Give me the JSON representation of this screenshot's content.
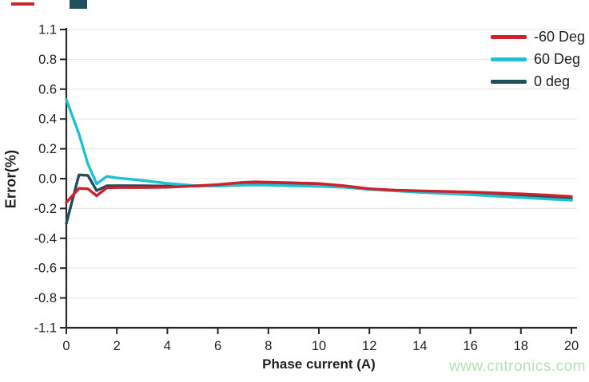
{
  "watermark": "www.cntronics.com",
  "colors": {
    "accent_red": "#d0202c",
    "accent_cyan": "#1ec0d2",
    "accent_dark_teal": "#204e5c",
    "text": "#231f20",
    "gridline": "#e9e9ec",
    "axis": "#2a2727",
    "watermark_green": "#b5e3b5"
  },
  "decor": {
    "top_left_red_dash": "#c4272e",
    "top_left_teal_square": "#20505e"
  },
  "chart_data": {
    "type": "line",
    "title": "",
    "xlabel": "Phase current (A)",
    "ylabel": "Error(%)",
    "xlim": [
      0,
      20
    ],
    "ylim": [
      -1.1,
      1.1
    ],
    "grid": "horizontal",
    "legend_position": "top-right",
    "x_ticks": [
      0,
      2,
      4,
      6,
      8,
      10,
      12,
      14,
      16,
      18,
      20
    ],
    "y_tick_labels": [
      "1.1",
      "0.8",
      "0.6",
      "0.4",
      "0.2",
      "0.0",
      "-0.2",
      "-0.4",
      "-0.6",
      "-0.8",
      "-1.1"
    ],
    "x": [
      0,
      0.5,
      0.85,
      1.2,
      1.6,
      2,
      3,
      4,
      5,
      6,
      7,
      7.5,
      8,
      9,
      10,
      11,
      12,
      13,
      14,
      15,
      16,
      17,
      18,
      19,
      20
    ],
    "series": [
      {
        "name": "-60 Deg",
        "color": "#d0202c",
        "values": [
          -0.16,
          -0.065,
          -0.068,
          -0.115,
          -0.062,
          -0.06,
          -0.06,
          -0.058,
          -0.05,
          -0.04,
          -0.025,
          -0.022,
          -0.024,
          -0.028,
          -0.033,
          -0.048,
          -0.068,
          -0.077,
          -0.082,
          -0.086,
          -0.09,
          -0.096,
          -0.102,
          -0.11,
          -0.12
        ]
      },
      {
        "name": "60 Deg",
        "color": "#1ec0d2",
        "values": [
          0.53,
          0.3,
          0.1,
          -0.035,
          0.015,
          0.005,
          -0.012,
          -0.032,
          -0.046,
          -0.05,
          -0.044,
          -0.042,
          -0.044,
          -0.048,
          -0.052,
          -0.058,
          -0.072,
          -0.082,
          -0.092,
          -0.1,
          -0.108,
          -0.117,
          -0.127,
          -0.136,
          -0.145
        ]
      },
      {
        "name": "0 deg",
        "color": "#204e5c",
        "values": [
          -0.3,
          0.025,
          0.022,
          -0.08,
          -0.048,
          -0.047,
          -0.048,
          -0.05,
          -0.05,
          -0.046,
          -0.04,
          -0.038,
          -0.04,
          -0.044,
          -0.049,
          -0.054,
          -0.069,
          -0.078,
          -0.085,
          -0.092,
          -0.1,
          -0.108,
          -0.116,
          -0.124,
          -0.133
        ]
      }
    ]
  }
}
